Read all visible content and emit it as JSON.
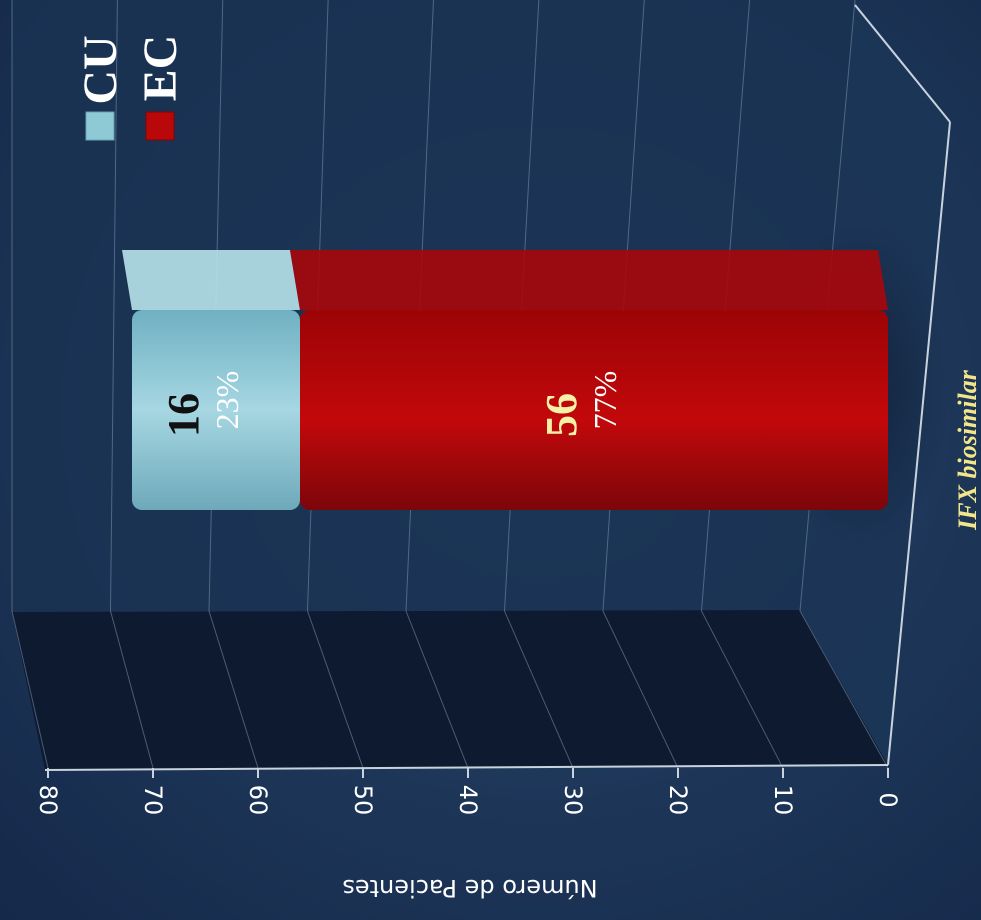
{
  "chart_data": {
    "type": "bar",
    "stacked": true,
    "orientation": "horizontal",
    "categories": [
      "IFX biosimilar"
    ],
    "series": [
      {
        "name": "CU",
        "values": [
          16
        ],
        "percent_label": "23%",
        "color": "#8ec9d6"
      },
      {
        "name": "EC",
        "values": [
          56
        ],
        "percent_label": "77%",
        "color": "#b8080a"
      }
    ],
    "ylabel": "Número de Pacientes",
    "xlabel": "",
    "value_axis_range": [
      0,
      80
    ],
    "value_ticks": [
      "0",
      "10",
      "20",
      "30",
      "40",
      "50",
      "60",
      "70",
      "80"
    ],
    "value_tick_values": [
      0,
      10,
      20,
      30,
      40,
      50,
      60,
      70,
      80
    ],
    "grid": true,
    "legend_position": "top-right",
    "data_labels": [
      {
        "series": "CU",
        "value": "16",
        "percent": "23%"
      },
      {
        "series": "EC",
        "value": "56",
        "percent": "77%"
      }
    ]
  }
}
